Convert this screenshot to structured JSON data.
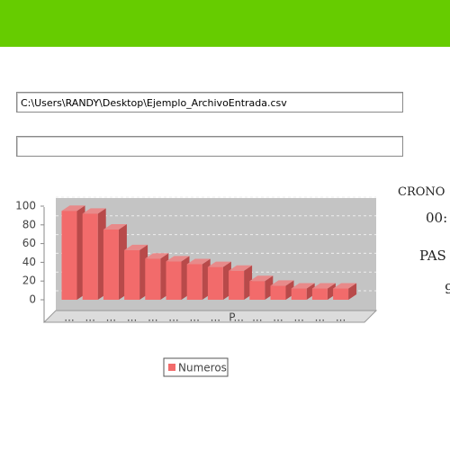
{
  "input_path": "C:\\Users\\RANDY\\Desktop\\Ejemplo_ArchivoEntrada.csv",
  "side": {
    "crono": "CRONO",
    "time": "00:",
    "pasos": "PAS",
    "count": "9"
  },
  "chart_data": {
    "type": "bar3d",
    "categories": [
      "...",
      "...",
      "...",
      "...",
      "...",
      "...",
      "...",
      "...",
      "P...",
      "...",
      "...",
      "...",
      "...",
      "..."
    ],
    "series": [
      {
        "name": "Numeros",
        "color": "#f26b6b",
        "values": [
          95,
          92,
          75,
          53,
          44,
          41,
          38,
          35,
          31,
          20,
          15,
          12,
          12,
          12
        ]
      }
    ],
    "ylim": [
      0,
      100
    ],
    "yticks": [
      0,
      20,
      40,
      60,
      80,
      100
    ],
    "grid": true,
    "legend": "bottom"
  }
}
